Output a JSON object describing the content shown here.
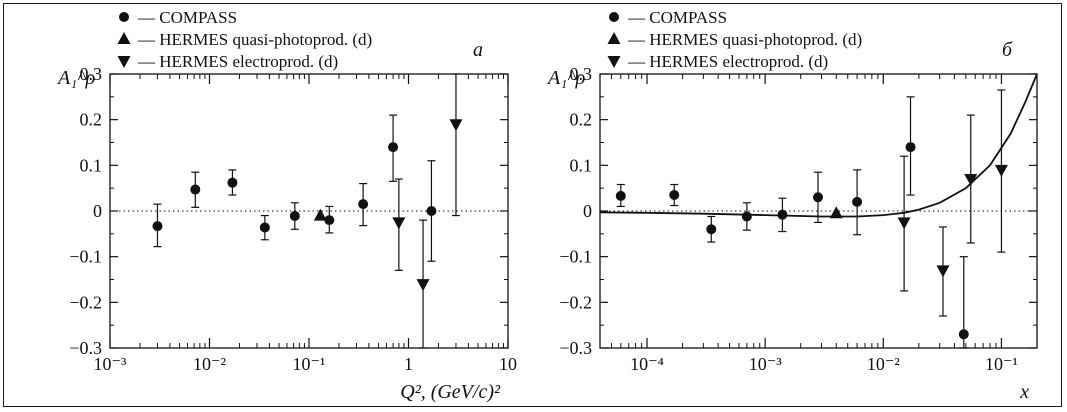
{
  "chart_data": [
    {
      "type": "scatter",
      "panel_label": "a",
      "xlabel": "Q², (GeV/c)²",
      "ylabel": "A₁^ρ",
      "x_scale": "log",
      "xlim": [
        0.001,
        10
      ],
      "ylim": [
        -0.3,
        0.3
      ],
      "x_ticks": [
        "10⁻³",
        "10⁻²",
        "10⁻¹",
        "1",
        "10"
      ],
      "y_ticks": [
        "−0.3",
        "−0.2",
        "−0.1",
        "0",
        "0.1",
        "0.2",
        "0.3"
      ],
      "legend_position": "top-left",
      "zero_line": "dotted",
      "series": [
        {
          "name": "— COMPASS",
          "marker": "circle",
          "points": [
            {
              "x": 0.003,
              "y": -0.033,
              "lo": -0.078,
              "hi": 0.015
            },
            {
              "x": 0.0072,
              "y": 0.047,
              "lo": 0.008,
              "hi": 0.085
            },
            {
              "x": 0.017,
              "y": 0.062,
              "lo": 0.035,
              "hi": 0.09
            },
            {
              "x": 0.036,
              "y": -0.036,
              "lo": -0.063,
              "hi": -0.01
            },
            {
              "x": 0.072,
              "y": -0.011,
              "lo": -0.04,
              "hi": 0.018
            },
            {
              "x": 0.16,
              "y": -0.02,
              "lo": -0.048,
              "hi": 0.01
            },
            {
              "x": 0.35,
              "y": 0.015,
              "lo": -0.032,
              "hi": 0.06
            },
            {
              "x": 0.7,
              "y": 0.14,
              "lo": 0.065,
              "hi": 0.21
            },
            {
              "x": 1.7,
              "y": 0.0,
              "lo": -0.11,
              "hi": 0.11
            }
          ]
        },
        {
          "name": "— HERMES quasi-photoprod. (d)",
          "marker": "triangle-up",
          "points": [
            {
              "x": 0.13,
              "y": -0.01,
              "lo": -0.01,
              "hi": -0.01
            }
          ]
        },
        {
          "name": "— HERMES electroprod. (d)",
          "marker": "triangle-down",
          "points": [
            {
              "x": 0.8,
              "y": -0.025,
              "lo": -0.13,
              "hi": 0.07
            },
            {
              "x": 1.4,
              "y": -0.16,
              "lo": -0.3,
              "hi": -0.02
            },
            {
              "x": 3.0,
              "y": 0.19,
              "lo": -0.01,
              "hi": 0.3
            }
          ]
        }
      ]
    },
    {
      "type": "scatter",
      "panel_label": "б",
      "xlabel": "x",
      "ylabel": "A₁^ρ",
      "x_scale": "log",
      "xlim": [
        4e-05,
        0.2
      ],
      "ylim": [
        -0.3,
        0.3
      ],
      "x_ticks": [
        "10⁻⁴",
        "10⁻³",
        "10⁻²",
        "10⁻¹"
      ],
      "y_ticks": [
        "−0.3",
        "−0.2",
        "−0.1",
        "0",
        "0.1",
        "0.2",
        "0.3"
      ],
      "legend_position": "top-left",
      "zero_line": "dotted",
      "series": [
        {
          "name": "— COMPASS",
          "marker": "circle",
          "points": [
            {
              "x": 6e-05,
              "y": 0.033,
              "lo": 0.01,
              "hi": 0.058
            },
            {
              "x": 0.00017,
              "y": 0.035,
              "lo": 0.012,
              "hi": 0.058
            },
            {
              "x": 0.00035,
              "y": -0.04,
              "lo": -0.068,
              "hi": -0.012
            },
            {
              "x": 0.0007,
              "y": -0.012,
              "lo": -0.042,
              "hi": 0.018
            },
            {
              "x": 0.0014,
              "y": -0.008,
              "lo": -0.045,
              "hi": 0.028
            },
            {
              "x": 0.0028,
              "y": 0.03,
              "lo": -0.025,
              "hi": 0.085
            },
            {
              "x": 0.006,
              "y": 0.02,
              "lo": -0.052,
              "hi": 0.09
            },
            {
              "x": 0.017,
              "y": 0.14,
              "lo": 0.035,
              "hi": 0.25
            },
            {
              "x": 0.048,
              "y": -0.27,
              "lo": -0.3,
              "hi": -0.1
            }
          ]
        },
        {
          "name": "— HERMES quasi-photoprod. (d)",
          "marker": "triangle-up",
          "points": [
            {
              "x": 0.004,
              "y": -0.005,
              "lo": -0.005,
              "hi": -0.005
            }
          ]
        },
        {
          "name": "— HERMES electroprod. (d)",
          "marker": "triangle-down",
          "points": [
            {
              "x": 0.015,
              "y": -0.025,
              "lo": -0.175,
              "hi": 0.12
            },
            {
              "x": 0.032,
              "y": -0.13,
              "lo": -0.23,
              "hi": -0.035
            },
            {
              "x": 0.055,
              "y": 0.07,
              "lo": -0.07,
              "hi": 0.21
            },
            {
              "x": 0.1,
              "y": 0.09,
              "lo": -0.09,
              "hi": 0.265
            }
          ]
        }
      ],
      "curve": {
        "x": [
          4e-05,
          0.0001,
          0.0003,
          0.001,
          0.003,
          0.006,
          0.01,
          0.015,
          0.02,
          0.03,
          0.05,
          0.08,
          0.12,
          0.16,
          0.2
        ],
        "y": [
          -0.003,
          -0.004,
          -0.006,
          -0.009,
          -0.012,
          -0.012,
          -0.009,
          -0.004,
          0.003,
          0.018,
          0.05,
          0.1,
          0.17,
          0.24,
          0.3
        ]
      }
    }
  ]
}
